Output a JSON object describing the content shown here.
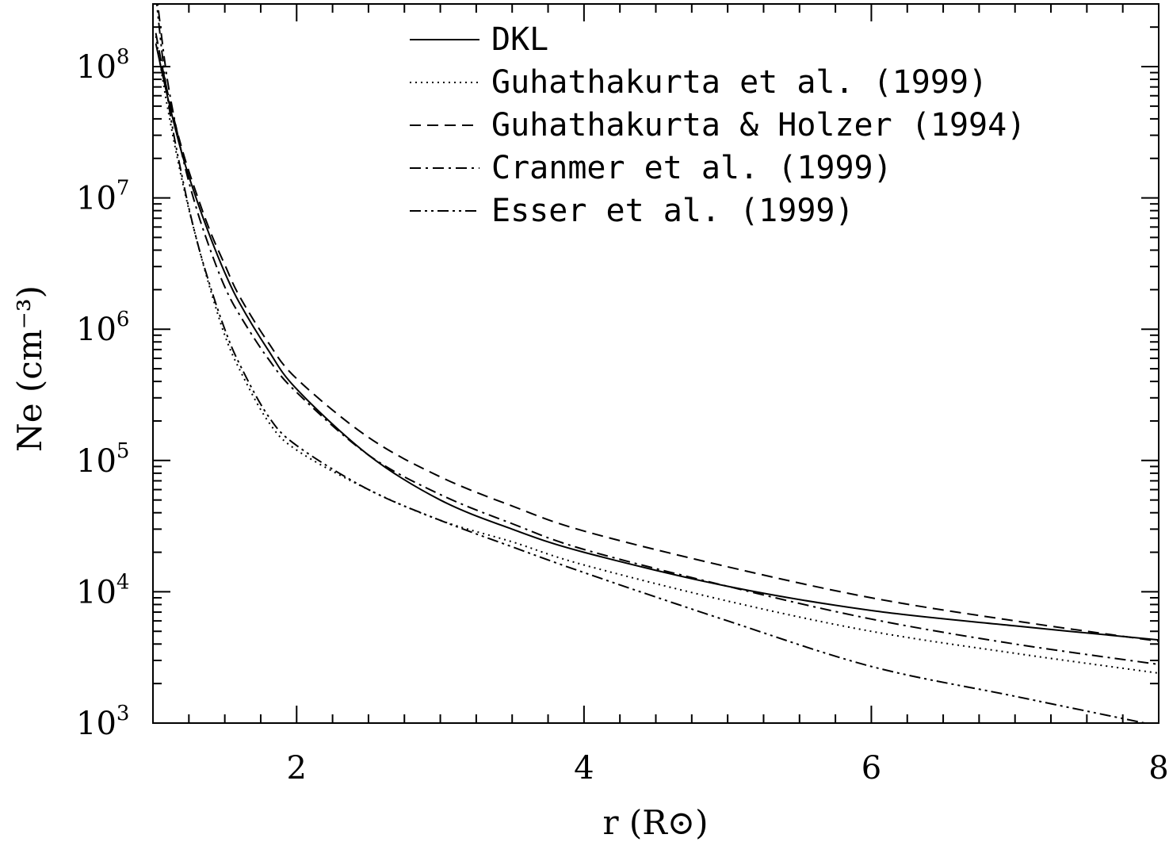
{
  "chart_data": {
    "type": "line",
    "xlabel": "r (R⊙)",
    "ylabel": "Ne (cm⁻³)",
    "xlim": [
      1.0,
      8.0
    ],
    "ylim": [
      1000,
      300000000
    ],
    "yscale": "log",
    "x_ticks": [
      2,
      4,
      6,
      8
    ],
    "x_tick_labels": [
      "2",
      "4",
      "6",
      "8"
    ],
    "y_ticks": [
      1000,
      10000,
      100000,
      1000000,
      10000000,
      100000000
    ],
    "y_tick_labels": [
      {
        "base": "10",
        "exp": "3"
      },
      {
        "base": "10",
        "exp": "4"
      },
      {
        "base": "10",
        "exp": "5"
      },
      {
        "base": "10",
        "exp": "6"
      },
      {
        "base": "10",
        "exp": "7"
      },
      {
        "base": "10",
        "exp": "8"
      }
    ],
    "legend_position": "top-center",
    "grid": false,
    "series": [
      {
        "name": "DKL",
        "style": "solid",
        "x": [
          1.02,
          1.1,
          1.2,
          1.3,
          1.4,
          1.5,
          1.6,
          1.8,
          2.0,
          2.5,
          3.0,
          3.5,
          4.0,
          5.0,
          6.0,
          7.0,
          8.0
        ],
        "y": [
          150000000,
          60000000,
          22000000,
          10000000,
          5000000,
          2700000,
          1600000,
          700000,
          350000,
          110000,
          50000,
          30000,
          20000,
          11000,
          7200,
          5500,
          4300
        ]
      },
      {
        "name": "Guhathakurta et al. (1999)",
        "style": "dotted",
        "x": [
          1.02,
          1.1,
          1.2,
          1.3,
          1.4,
          1.5,
          1.6,
          1.8,
          2.0,
          2.5,
          3.0,
          3.5,
          4.0,
          5.0,
          6.0,
          7.0,
          8.0
        ],
        "y": [
          170000000,
          50000000,
          14000000,
          5000000,
          2000000,
          900000,
          500000,
          200000,
          120000,
          60000,
          35000,
          24000,
          16000,
          8500,
          5000,
          3400,
          2400
        ]
      },
      {
        "name": "Guhathakurta & Holzer (1994)",
        "style": "dashed",
        "x": [
          1.02,
          1.1,
          1.2,
          1.3,
          1.4,
          1.5,
          1.6,
          1.8,
          2.0,
          2.5,
          3.0,
          3.5,
          4.0,
          5.0,
          6.0,
          7.0,
          8.0
        ],
        "y": [
          180000000,
          65000000,
          24000000,
          11000000,
          5500000,
          3100000,
          1800000,
          800000,
          420000,
          150000,
          75000,
          45000,
          29000,
          15500,
          9000,
          6000,
          4200
        ]
      },
      {
        "name": "Cranmer et al. (1999)",
        "style": "dashdot",
        "x": [
          1.02,
          1.1,
          1.2,
          1.3,
          1.4,
          1.5,
          1.6,
          1.8,
          2.0,
          2.5,
          3.0,
          3.5,
          4.0,
          5.0,
          6.0,
          7.0,
          8.0
        ],
        "y": [
          400000000,
          80000000,
          22000000,
          8500000,
          4000000,
          2100000,
          1300000,
          600000,
          330000,
          110000,
          55000,
          33000,
          21000,
          11000,
          6200,
          4000,
          2800
        ]
      },
      {
        "name": "Esser et al. (1999)",
        "style": "dashdotdot",
        "x": [
          1.02,
          1.1,
          1.2,
          1.3,
          1.4,
          1.5,
          1.6,
          1.8,
          2.0,
          2.5,
          3.0,
          3.5,
          4.0,
          5.0,
          6.0,
          7.0,
          8.0
        ],
        "y": [
          350000000,
          60000000,
          15000000,
          5000000,
          2100000,
          1000000,
          550000,
          220000,
          130000,
          60000,
          35000,
          22000,
          14000,
          6000,
          2700,
          1600,
          950
        ]
      }
    ]
  }
}
